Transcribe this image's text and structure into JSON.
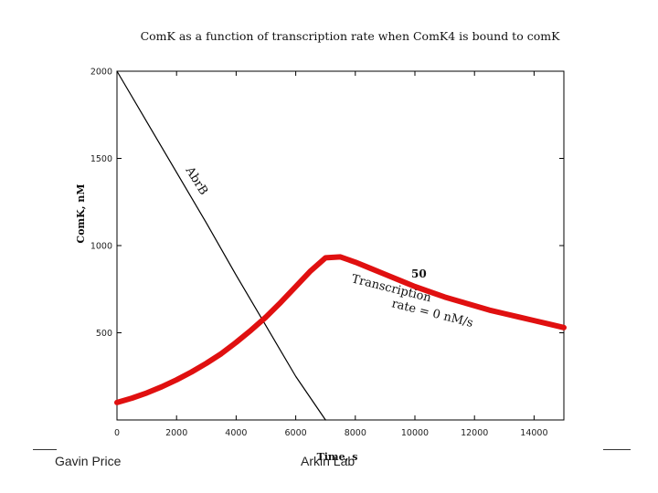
{
  "chart_data": {
    "type": "line",
    "title": "ComK as a function of transcription rate when ComK4 is bound to comK",
    "xlabel": "Time, s",
    "ylabel": "ComK, nM",
    "xlim": [
      0,
      15000
    ],
    "ylim": [
      0,
      2000
    ],
    "x_ticks": [
      0,
      2000,
      4000,
      6000,
      8000,
      10000,
      12000,
      14000
    ],
    "x_tick_labels": [
      "0",
      "2000",
      "4000",
      "6000",
      "8000",
      "10000",
      "12000",
      "14000"
    ],
    "y_ticks": [
      500,
      1000,
      1500,
      2000
    ],
    "y_tick_labels": [
      "500",
      "1000",
      "1500",
      "2000"
    ],
    "series": [
      {
        "name": "AbrB",
        "color": "#000000",
        "x": [
          0,
          1000,
          2000,
          3000,
          4000,
          5000,
          6000,
          7000
        ],
        "y": [
          2000,
          1710,
          1420,
          1130,
          830,
          540,
          250,
          0
        ]
      },
      {
        "name": "ComK",
        "color": "#e01010",
        "x": [
          0,
          500,
          1000,
          1500,
          2000,
          2500,
          3000,
          3500,
          4000,
          4500,
          5000,
          5500,
          6000,
          6500,
          7000,
          7500,
          8000,
          8500,
          9000,
          9500,
          10000,
          10500,
          11000,
          11500,
          12000,
          12500,
          13000,
          13500,
          14000,
          14500,
          15000
        ],
        "y": [
          100,
          125,
          155,
          190,
          230,
          275,
          325,
          380,
          445,
          515,
          590,
          675,
          765,
          855,
          930,
          935,
          905,
          870,
          835,
          800,
          765,
          735,
          705,
          680,
          655,
          630,
          610,
          590,
          570,
          550,
          530
        ]
      }
    ],
    "annotations": {
      "abrb_label": "AbrB",
      "rate_high": "50",
      "rate_label_1": "Transcription",
      "rate_label_2": "rate = 0 nM/s"
    }
  },
  "footer": {
    "author": "Gavin Price",
    "lab": "Arkin Lab"
  }
}
